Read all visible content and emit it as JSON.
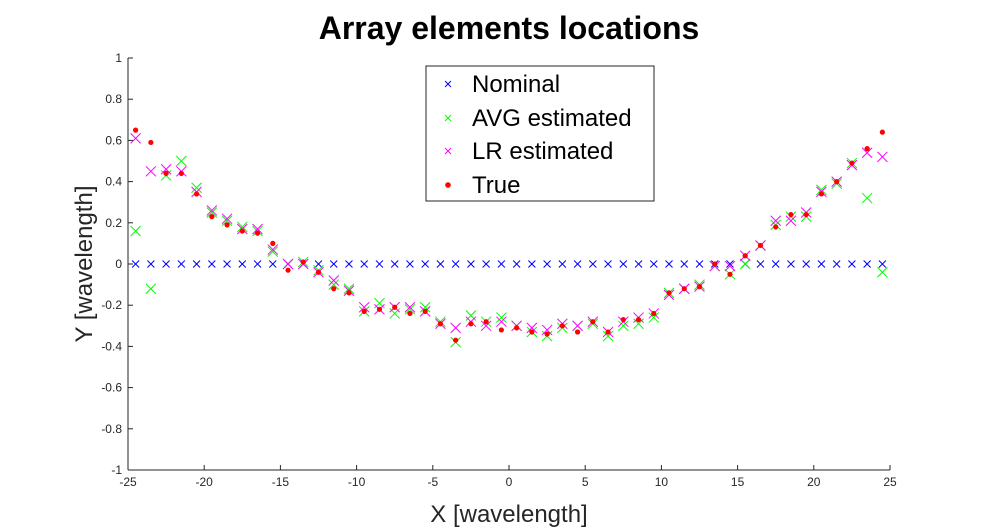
{
  "chart_data": {
    "type": "scatter",
    "title": "Array elements locations",
    "xlabel": "X [wavelength]",
    "ylabel": "Y [wavelength]",
    "xlim": [
      -25,
      25
    ],
    "ylim": [
      -1,
      1
    ],
    "xticks": [
      -25,
      -20,
      -15,
      -10,
      -5,
      0,
      5,
      10,
      15,
      20,
      25
    ],
    "yticks": [
      -1,
      -0.8,
      -0.6,
      -0.4,
      -0.2,
      0,
      0.2,
      0.4,
      0.6,
      0.8,
      1
    ],
    "grid": false,
    "legend_position": "top-center",
    "x": [
      -24.5,
      -23.5,
      -22.5,
      -21.5,
      -20.5,
      -19.5,
      -18.5,
      -17.5,
      -16.5,
      -15.5,
      -14.5,
      -13.5,
      -12.5,
      -11.5,
      -10.5,
      -9.5,
      -8.5,
      -7.5,
      -6.5,
      -5.5,
      -4.5,
      -3.5,
      -2.5,
      -1.5,
      -0.5,
      0.5,
      1.5,
      2.5,
      3.5,
      4.5,
      5.5,
      6.5,
      7.5,
      8.5,
      9.5,
      10.5,
      11.5,
      12.5,
      13.5,
      14.5,
      15.5,
      16.5,
      17.5,
      18.5,
      19.5,
      20.5,
      21.5,
      22.5,
      23.5,
      24.5
    ],
    "series": [
      {
        "name": "Nominal",
        "marker": "x",
        "color": "#0000ff",
        "y": [
          0,
          0,
          0,
          0,
          0,
          0,
          0,
          0,
          0,
          0,
          0,
          0,
          0,
          0,
          0,
          0,
          0,
          0,
          0,
          0,
          0,
          0,
          0,
          0,
          0,
          0,
          0,
          0,
          0,
          0,
          0,
          0,
          0,
          0,
          0,
          0,
          0,
          0,
          0,
          0,
          0,
          0,
          0,
          0,
          0,
          0,
          0,
          0,
          0,
          0
        ]
      },
      {
        "name": "AVG estimated",
        "marker": "x",
        "color": "#00ff00",
        "y": [
          0.16,
          -0.12,
          0.43,
          0.5,
          0.37,
          0.25,
          0.21,
          0.18,
          0.16,
          0.06,
          0.0,
          0.01,
          -0.03,
          -0.1,
          -0.12,
          -0.23,
          -0.19,
          -0.24,
          -0.22,
          -0.21,
          -0.28,
          -0.38,
          -0.25,
          -0.28,
          -0.26,
          -0.3,
          -0.33,
          -0.35,
          -0.31,
          -0.3,
          -0.29,
          -0.35,
          -0.3,
          -0.29,
          -0.26,
          -0.14,
          -0.12,
          -0.1,
          -0.01,
          -0.05,
          0.0,
          0.09,
          0.19,
          0.23,
          0.23,
          0.36,
          0.39,
          0.49,
          0.32,
          -0.04
        ]
      },
      {
        "name": "LR estimated",
        "marker": "x",
        "color": "#ff00ff",
        "y": [
          0.61,
          0.45,
          0.46,
          0.45,
          0.35,
          0.26,
          0.22,
          0.17,
          0.17,
          0.07,
          0.0,
          0.0,
          -0.04,
          -0.08,
          -0.13,
          -0.21,
          -0.22,
          -0.21,
          -0.21,
          -0.23,
          -0.29,
          -0.31,
          -0.28,
          -0.3,
          -0.28,
          -0.3,
          -0.31,
          -0.32,
          -0.29,
          -0.3,
          -0.28,
          -0.33,
          -0.28,
          -0.26,
          -0.24,
          -0.15,
          -0.12,
          -0.11,
          -0.01,
          -0.01,
          0.04,
          0.09,
          0.21,
          0.21,
          0.25,
          0.35,
          0.4,
          0.48,
          0.54,
          0.52
        ]
      },
      {
        "name": "True",
        "marker": "o",
        "color": "#ff0000",
        "y": [
          0.65,
          0.59,
          0.44,
          0.44,
          0.34,
          0.23,
          0.19,
          0.16,
          0.15,
          0.1,
          -0.03,
          0.01,
          -0.04,
          -0.12,
          -0.14,
          -0.23,
          -0.22,
          -0.21,
          -0.24,
          -0.23,
          -0.29,
          -0.37,
          -0.29,
          -0.28,
          -0.32,
          -0.31,
          -0.33,
          -0.34,
          -0.3,
          -0.33,
          -0.28,
          -0.33,
          -0.27,
          -0.27,
          -0.24,
          -0.14,
          -0.12,
          -0.11,
          0.0,
          -0.05,
          0.04,
          0.09,
          0.18,
          0.24,
          0.24,
          0.34,
          0.4,
          0.49,
          0.56,
          0.64
        ]
      }
    ]
  }
}
